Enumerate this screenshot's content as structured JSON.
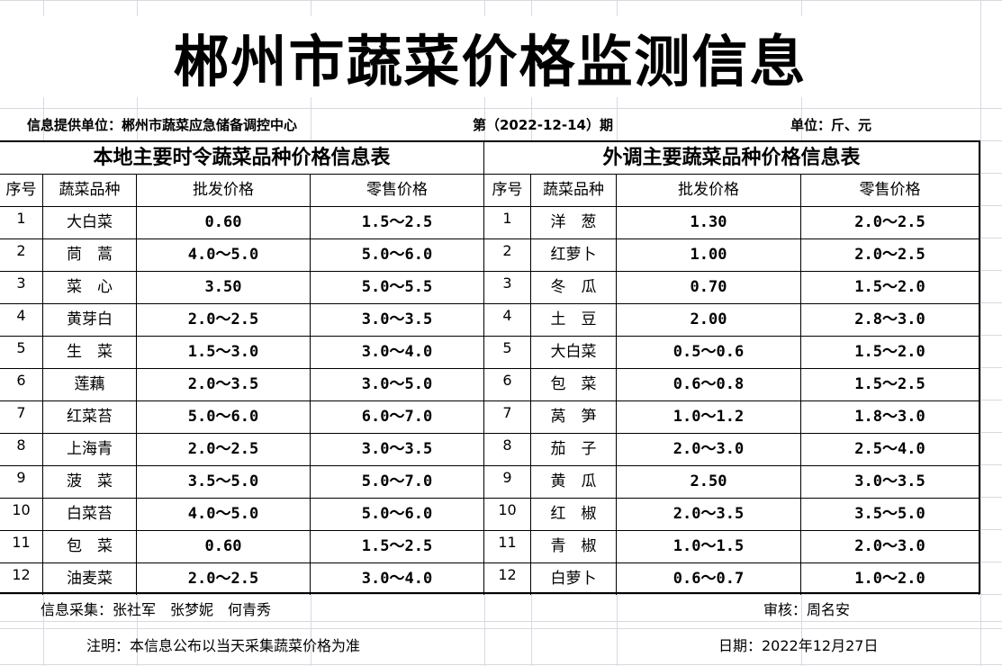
{
  "title": "郴州市蔬菜价格监测信息",
  "info": {
    "provider_label": "信息提供单位：",
    "provider": "郴州市蔬菜应急储备调控中心",
    "period": "第（2022-12-14）期",
    "unit": "单位：斤、元"
  },
  "local": {
    "title": "本地主要时令蔬菜品种价格信息表",
    "headers": [
      "序号",
      "蔬菜品种",
      "批发价格",
      "零售价格"
    ],
    "rows": [
      [
        "1",
        "大白菜",
        "0.60",
        "1.5～2.5"
      ],
      [
        "2",
        "茼　蒿",
        "4.0～5.0",
        "5.0～6.0"
      ],
      [
        "3",
        "菜　心",
        "3.50",
        "5.0～5.5"
      ],
      [
        "4",
        "黄芽白",
        "2.0～2.5",
        "3.0～3.5"
      ],
      [
        "5",
        "生　菜",
        "1.5～3.0",
        "3.0～4.0"
      ],
      [
        "6",
        "莲藕",
        "2.0～3.5",
        "3.0～5.0"
      ],
      [
        "7",
        "红菜苔",
        "5.0～6.0",
        "6.0～7.0"
      ],
      [
        "8",
        "上海青",
        "2.0～2.5",
        "3.0～3.5"
      ],
      [
        "9",
        "菠　菜",
        "3.5～5.0",
        "5.0～7.0"
      ],
      [
        "10",
        "白菜苔",
        "4.0～5.0",
        "5.0～6.0"
      ],
      [
        "11",
        "包　菜",
        "0.60",
        "1.5～2.5"
      ],
      [
        "12",
        "油麦菜",
        "2.0～2.5",
        "3.0～4.0"
      ]
    ]
  },
  "external": {
    "title": "外调主要蔬菜品种价格信息表",
    "headers": [
      "序号",
      "蔬菜品种",
      "批发价格",
      "零售价格"
    ],
    "rows": [
      [
        "1",
        "洋　葱",
        "1.30",
        "2.0～2.5"
      ],
      [
        "2",
        "红萝卜",
        "1.00",
        "2.0～2.5"
      ],
      [
        "3",
        "冬　瓜",
        "0.70",
        "1.5～2.0"
      ],
      [
        "4",
        "土　豆",
        "2.00",
        "2.8～3.0"
      ],
      [
        "5",
        "大白菜",
        "0.5～0.6",
        "1.5～2.0"
      ],
      [
        "6",
        "包　菜",
        "0.6～0.8",
        "1.5～2.5"
      ],
      [
        "7",
        "莴　笋",
        "1.0～1.2",
        "1.8～3.0"
      ],
      [
        "8",
        "茄　子",
        "2.0～3.0",
        "2.5～4.0"
      ],
      [
        "9",
        "黄　瓜",
        "2.50",
        "3.0～3.5"
      ],
      [
        "10",
        "红　椒",
        "2.0～3.5",
        "3.5～5.0"
      ],
      [
        "11",
        "青　椒",
        "1.0～1.5",
        "2.0～3.0"
      ],
      [
        "12",
        "白萝卜",
        "0.6～0.7",
        "1.0～2.0"
      ]
    ]
  },
  "footer": {
    "collectors": "信息采集：张社军　张梦妮　何青秀",
    "reviewer": "审核：周名安",
    "note": "注明：本信息公布以当天采集蔬菜价格为准",
    "date": "日期：2022年12月27日"
  }
}
